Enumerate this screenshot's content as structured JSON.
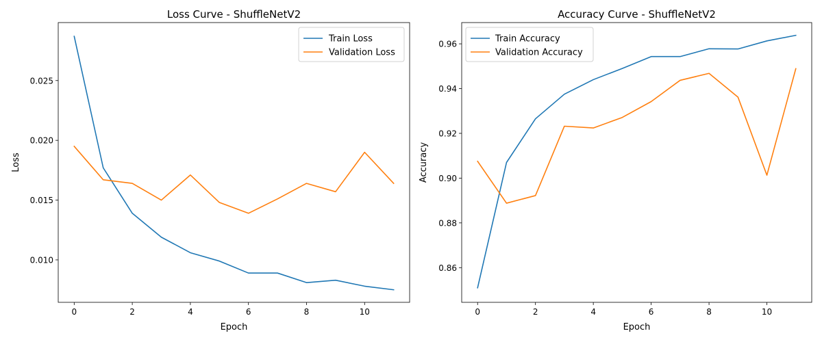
{
  "chart_data": [
    {
      "type": "line",
      "title": "Loss Curve - ShuffleNetV2",
      "xlabel": "Epoch",
      "ylabel": "Loss",
      "x": [
        0,
        1,
        2,
        3,
        4,
        5,
        6,
        7,
        8,
        9,
        10,
        11
      ],
      "xlim": [
        -0.55,
        11.55
      ],
      "ylim": [
        0.00645,
        0.02985
      ],
      "xticks": [
        0,
        2,
        4,
        6,
        8,
        10
      ],
      "xtick_labels": [
        "0",
        "2",
        "4",
        "6",
        "8",
        "10"
      ],
      "yticks": [
        0.01,
        0.015,
        0.02,
        0.025
      ],
      "ytick_labels": [
        "0.010",
        "0.015",
        "0.020",
        "0.025"
      ],
      "legend_position": "upper right",
      "grid": false,
      "series": [
        {
          "name": "Train Loss",
          "color": "#1f77b4",
          "values": [
            0.0287,
            0.0177,
            0.0139,
            0.0119,
            0.0106,
            0.0099,
            0.0089,
            0.0089,
            0.0081,
            0.0083,
            0.0078,
            0.0075
          ]
        },
        {
          "name": "Validation Loss",
          "color": "#ff7f0e",
          "values": [
            0.0195,
            0.0167,
            0.0164,
            0.015,
            0.0171,
            0.0148,
            0.0139,
            0.0151,
            0.0164,
            0.0157,
            0.019,
            0.0164
          ]
        }
      ]
    },
    {
      "type": "line",
      "title": "Accuracy Curve - ShuffleNetV2",
      "xlabel": "Epoch",
      "ylabel": "Accuracy",
      "x": [
        0,
        1,
        2,
        3,
        4,
        5,
        6,
        7,
        8,
        9,
        10,
        11
      ],
      "xlim": [
        -0.55,
        11.55
      ],
      "ylim": [
        0.8445,
        0.9695
      ],
      "xticks": [
        0,
        2,
        4,
        6,
        8,
        10
      ],
      "xtick_labels": [
        "0",
        "2",
        "4",
        "6",
        "8",
        "10"
      ],
      "yticks": [
        0.86,
        0.88,
        0.9,
        0.92,
        0.94,
        0.96
      ],
      "ytick_labels": [
        "0.86",
        "0.88",
        "0.90",
        "0.92",
        "0.94",
        "0.96"
      ],
      "legend_position": "upper left",
      "grid": false,
      "series": [
        {
          "name": "Train Accuracy",
          "color": "#1f77b4",
          "values": [
            0.851,
            0.907,
            0.9265,
            0.9375,
            0.944,
            0.949,
            0.9543,
            0.9543,
            0.9578,
            0.9577,
            0.9613,
            0.9638
          ]
        },
        {
          "name": "Validation Accuracy",
          "color": "#ff7f0e",
          "values": [
            0.9075,
            0.8888,
            0.8922,
            0.9232,
            0.9224,
            0.9271,
            0.9342,
            0.9437,
            0.9468,
            0.9362,
            0.9013,
            0.9489
          ]
        }
      ]
    }
  ]
}
